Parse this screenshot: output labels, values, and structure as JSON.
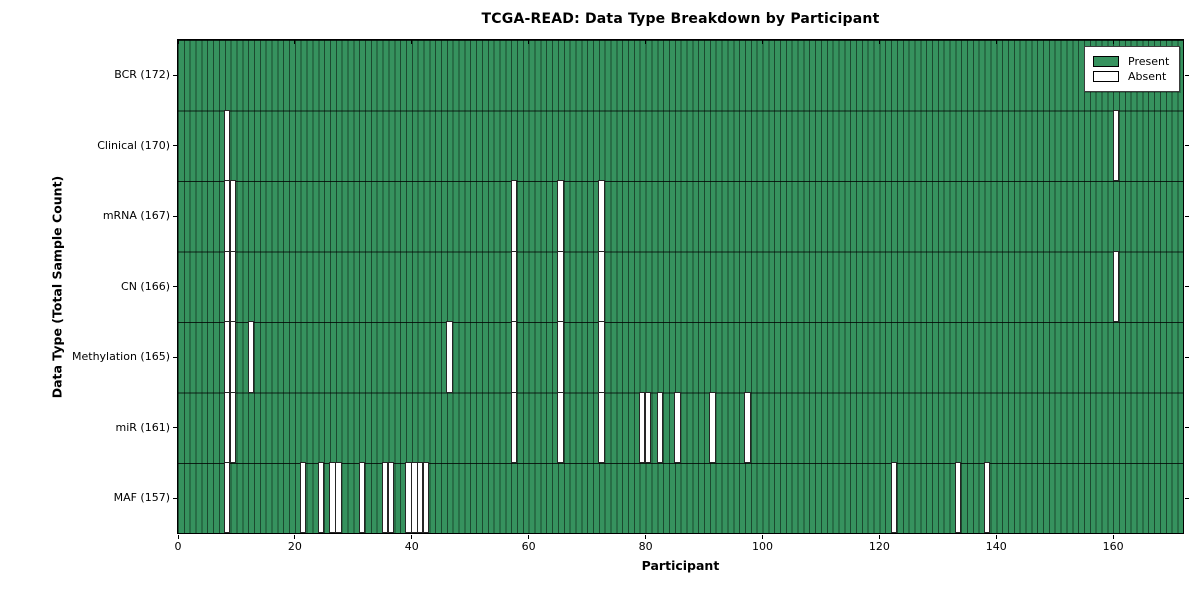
{
  "title": "TCGA-READ: Data Type Breakdown by Participant",
  "chart_data": {
    "type": "heatmap",
    "title": "TCGA-READ: Data Type Breakdown by Participant",
    "xlabel": "Participant",
    "ylabel": "Data Type (Total Sample Count)",
    "n_participants": 172,
    "x_ticks": [
      0,
      20,
      40,
      60,
      80,
      100,
      120,
      140,
      160
    ],
    "grid": "cell-edges",
    "legend_position": "upper right",
    "colors": {
      "present": "#36925e",
      "absent": "#ffffff",
      "frame": "#000000"
    },
    "rows": [
      {
        "label": "BCR (172)",
        "data_type": "BCR",
        "total_samples": 172,
        "absent_participants": []
      },
      {
        "label": "Clinical (170)",
        "data_type": "Clinical",
        "total_samples": 170,
        "absent_participants": [
          8,
          160
        ]
      },
      {
        "label": "mRNA (167)",
        "data_type": "mRNA",
        "total_samples": 167,
        "absent_participants": [
          8,
          9,
          57,
          65,
          72
        ]
      },
      {
        "label": "CN (166)",
        "data_type": "CN",
        "total_samples": 166,
        "absent_participants": [
          8,
          9,
          57,
          65,
          72,
          160
        ]
      },
      {
        "label": "Methylation (165)",
        "data_type": "Methylation",
        "total_samples": 165,
        "absent_participants": [
          8,
          9,
          12,
          46,
          57,
          65,
          72
        ]
      },
      {
        "label": "miR (161)",
        "data_type": "miR",
        "total_samples": 161,
        "absent_participants": [
          8,
          9,
          57,
          65,
          72,
          79,
          80,
          82,
          85,
          91,
          97
        ]
      },
      {
        "label": "MAF (157)",
        "data_type": "MAF",
        "total_samples": 157,
        "absent_participants": [
          8,
          21,
          24,
          26,
          27,
          31,
          35,
          36,
          39,
          40,
          41,
          42,
          122,
          133,
          138
        ]
      }
    ],
    "legend": {
      "entries": [
        {
          "label": "Present",
          "color": "#36925e"
        },
        {
          "label": "Absent",
          "color": "#ffffff"
        }
      ]
    }
  }
}
